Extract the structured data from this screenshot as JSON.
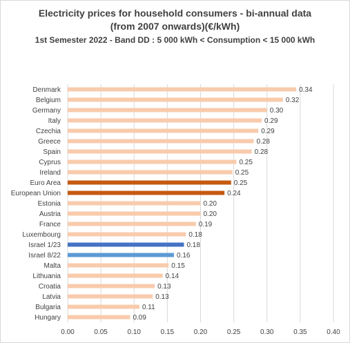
{
  "chart_data": {
    "type": "bar",
    "orientation": "horizontal",
    "title_line1": "Electricity prices for household consumers - bi-annual data",
    "title_line2": "(from 2007 onwards)(€/kWh)",
    "subtitle": "1st Semester 2022 - Band DD : 5 000 kWh < Consumption < 15 000 kWh",
    "categories": [
      "Denmark",
      "Belgium",
      "Germany",
      "Italy",
      "Czechia",
      "Greece",
      "Spain",
      "Cyprus",
      "Ireland",
      "Euro Area",
      "European Union",
      "Estonia",
      "Austria",
      "France",
      "Luxembourg",
      "Israel 1/23",
      "Israel 8/22",
      "Malta",
      "Lithuania",
      "Croatia",
      "Latvia",
      "Bulgaria",
      "Hungary"
    ],
    "values": [
      0.344,
      0.324,
      0.3,
      0.292,
      0.287,
      0.28,
      0.277,
      0.254,
      0.248,
      0.246,
      0.236,
      0.2,
      0.2,
      0.193,
      0.178,
      0.175,
      0.16,
      0.152,
      0.143,
      0.131,
      0.128,
      0.108,
      0.094
    ],
    "value_labels": [
      "0.34",
      "0.32",
      "0.30",
      "0.29",
      "0.29",
      "0.28",
      "0.28",
      "0.25",
      "0.25",
      "0.25",
      "0.24",
      "0.20",
      "0.20",
      "0.19",
      "0.18",
      "0.18",
      "0.16",
      "0.15",
      "0.14",
      "0.13",
      "0.13",
      "0.11",
      "0.09"
    ],
    "bar_colors": [
      "#f8cbad",
      "#f8cbad",
      "#f8cbad",
      "#f8cbad",
      "#f8cbad",
      "#f8cbad",
      "#f8cbad",
      "#f8cbad",
      "#f8cbad",
      "#c55a11",
      "#c55a11",
      "#f8cbad",
      "#f8cbad",
      "#f8cbad",
      "#f8cbad",
      "#4472c4",
      "#5b9bd5",
      "#f8cbad",
      "#f8cbad",
      "#f8cbad",
      "#f8cbad",
      "#f8cbad",
      "#f8cbad"
    ],
    "xlim": [
      0,
      0.4
    ],
    "x_ticks": [
      "0.00",
      "0.05",
      "0.10",
      "0.15",
      "0.20",
      "0.25",
      "0.30",
      "0.35",
      "0.40"
    ],
    "grid": true,
    "legend": "none"
  }
}
